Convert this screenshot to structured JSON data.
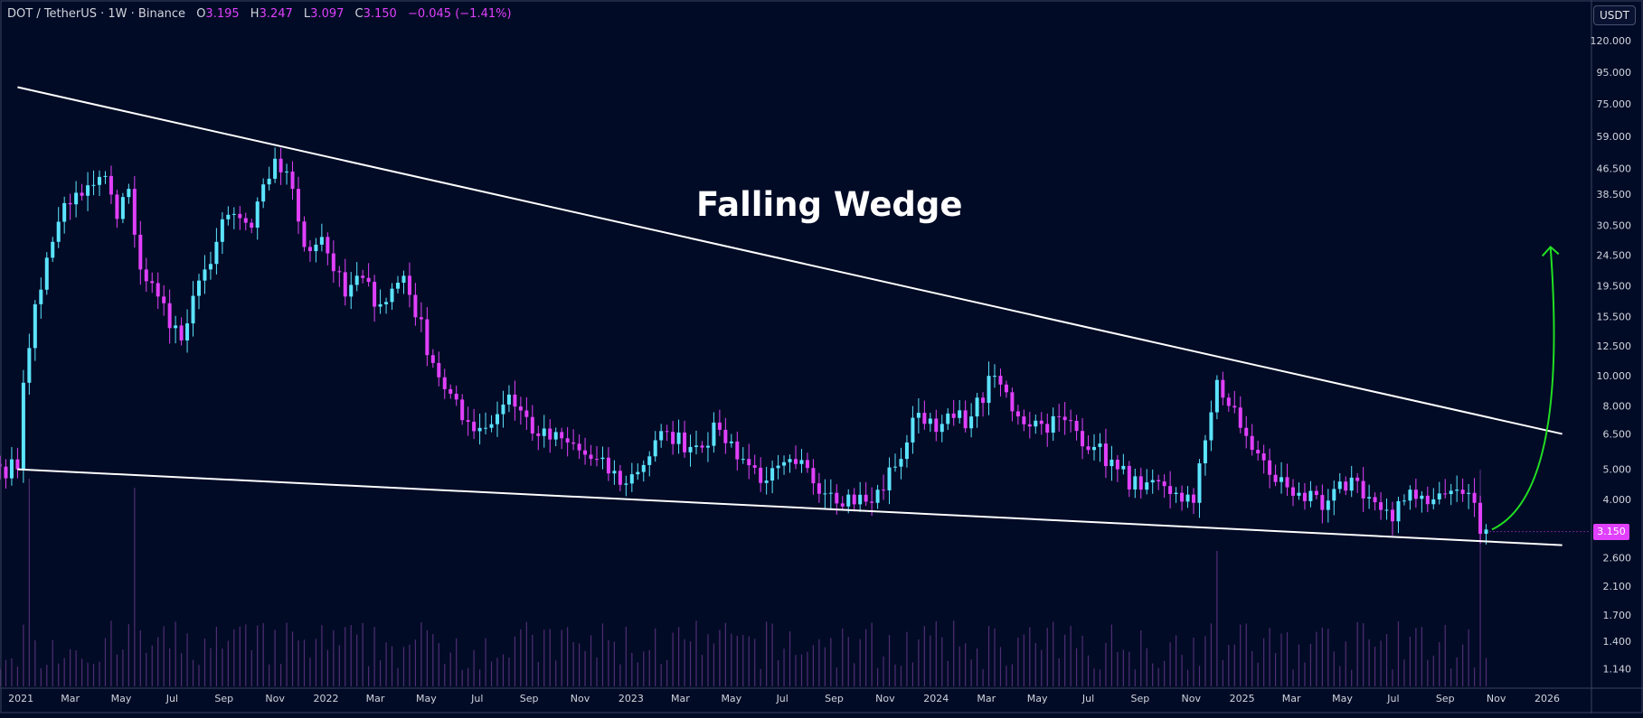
{
  "header": {
    "symbol": "DOT / TetherUS · 1W · Binance",
    "o_label": "O",
    "o_value": "3.195",
    "h_label": "H",
    "h_value": "3.247",
    "l_label": "L",
    "l_value": "3.097",
    "c_label": "C",
    "c_value": "3.150",
    "change": "−0.045 (−1.41%)"
  },
  "unit_badge": "USDT",
  "colors": {
    "background": "#010b26",
    "up": "#5ce4ff",
    "down": "#e040fb",
    "trendline": "#ffffff",
    "arrow": "#22e022",
    "volume": "#6b3a8f"
  },
  "chart_data": {
    "type": "candlestick",
    "title": "Falling Wedge",
    "y_scale": "log",
    "ylim": [
      1.0,
      140.0
    ],
    "y_ticks": [
      120,
      95,
      75,
      59,
      46.5,
      38.5,
      30.5,
      24.5,
      19.5,
      15.5,
      12.5,
      10,
      8,
      6.5,
      5,
      4,
      3.15,
      2.6,
      2.1,
      1.7,
      1.4,
      1.14
    ],
    "y_tick_labels": [
      "120.000",
      "95.000",
      "75.000",
      "59.000",
      "46.500",
      "38.500",
      "30.500",
      "24.500",
      "19.500",
      "15.500",
      "12.500",
      "10.000",
      "8.000",
      "6.500",
      "5.000",
      "4.000",
      "3.150",
      "2.600",
      "2.100",
      "1.700",
      "1.400",
      "1.140"
    ],
    "last_price": "3.150",
    "x_ticks": [
      "2021",
      "Mar",
      "May",
      "Jul",
      "Sep",
      "Nov",
      "2022",
      "Mar",
      "May",
      "Jul",
      "Sep",
      "Nov",
      "2023",
      "Mar",
      "May",
      "Jul",
      "Sep",
      "Nov",
      "2024",
      "Mar",
      "May",
      "Jul",
      "Sep",
      "Nov",
      "2025",
      "Mar",
      "May",
      "Jul",
      "Sep",
      "Nov",
      "2026"
    ],
    "x_tick_dates": [
      "2021-01-01",
      "2021-03-01",
      "2021-05-01",
      "2021-07-01",
      "2021-09-01",
      "2021-11-01",
      "2022-01-01",
      "2022-03-01",
      "2022-05-01",
      "2022-07-01",
      "2022-09-01",
      "2022-11-01",
      "2023-01-01",
      "2023-03-01",
      "2023-05-01",
      "2023-07-01",
      "2023-09-01",
      "2023-11-01",
      "2024-01-01",
      "2024-03-01",
      "2024-05-01",
      "2024-07-01",
      "2024-09-01",
      "2024-11-01",
      "2025-01-01",
      "2025-03-01",
      "2025-05-01",
      "2025-07-01",
      "2025-09-01",
      "2025-11-01",
      "2026-01-01"
    ],
    "anchors": [
      {
        "date": "2020-12-07",
        "value": 5.1
      },
      {
        "date": "2020-12-28",
        "value": 5.0
      },
      {
        "date": "2021-01-04",
        "value": 9.5
      },
      {
        "date": "2021-01-18",
        "value": 17
      },
      {
        "date": "2021-02-08",
        "value": 27
      },
      {
        "date": "2021-02-22",
        "value": 36
      },
      {
        "date": "2021-03-15",
        "value": 38
      },
      {
        "date": "2021-04-12",
        "value": 44
      },
      {
        "date": "2021-04-26",
        "value": 32
      },
      {
        "date": "2021-05-10",
        "value": 40
      },
      {
        "date": "2021-05-24",
        "value": 22
      },
      {
        "date": "2021-06-14",
        "value": 18
      },
      {
        "date": "2021-07-12",
        "value": 13
      },
      {
        "date": "2021-08-09",
        "value": 22
      },
      {
        "date": "2021-09-06",
        "value": 33
      },
      {
        "date": "2021-10-04",
        "value": 30
      },
      {
        "date": "2021-11-01",
        "value": 50
      },
      {
        "date": "2021-11-22",
        "value": 40
      },
      {
        "date": "2021-12-06",
        "value": 26
      },
      {
        "date": "2021-12-27",
        "value": 28
      },
      {
        "date": "2022-01-24",
        "value": 18
      },
      {
        "date": "2022-02-07",
        "value": 21
      },
      {
        "date": "2022-03-07",
        "value": 17
      },
      {
        "date": "2022-04-04",
        "value": 21
      },
      {
        "date": "2022-05-09",
        "value": 11
      },
      {
        "date": "2022-06-13",
        "value": 7.2
      },
      {
        "date": "2022-07-11",
        "value": 6.8
      },
      {
        "date": "2022-08-08",
        "value": 8.7
      },
      {
        "date": "2022-09-12",
        "value": 6.4
      },
      {
        "date": "2022-10-17",
        "value": 6.1
      },
      {
        "date": "2022-11-14",
        "value": 5.4
      },
      {
        "date": "2022-12-26",
        "value": 4.5
      },
      {
        "date": "2023-02-13",
        "value": 6.6
      },
      {
        "date": "2023-03-13",
        "value": 5.9
      },
      {
        "date": "2023-04-17",
        "value": 6.7
      },
      {
        "date": "2023-05-15",
        "value": 5.4
      },
      {
        "date": "2023-06-12",
        "value": 4.6
      },
      {
        "date": "2023-07-17",
        "value": 5.2
      },
      {
        "date": "2023-08-28",
        "value": 4.2
      },
      {
        "date": "2023-10-16",
        "value": 3.9
      },
      {
        "date": "2023-11-13",
        "value": 5.1
      },
      {
        "date": "2023-12-11",
        "value": 7.6
      },
      {
        "date": "2024-01-08",
        "value": 7.0
      },
      {
        "date": "2024-02-12",
        "value": 7.4
      },
      {
        "date": "2024-03-11",
        "value": 10.0
      },
      {
        "date": "2024-04-08",
        "value": 7.4
      },
      {
        "date": "2024-05-06",
        "value": 7.0
      },
      {
        "date": "2024-06-03",
        "value": 7.2
      },
      {
        "date": "2024-07-08",
        "value": 5.9
      },
      {
        "date": "2024-08-05",
        "value": 5.0
      },
      {
        "date": "2024-09-02",
        "value": 4.3
      },
      {
        "date": "2024-10-14",
        "value": 4.2
      },
      {
        "date": "2024-11-04",
        "value": 3.9
      },
      {
        "date": "2024-11-18",
        "value": 6.2
      },
      {
        "date": "2024-12-02",
        "value": 9.7
      },
      {
        "date": "2024-12-30",
        "value": 6.8
      },
      {
        "date": "2025-02-03",
        "value": 4.8
      },
      {
        "date": "2025-03-10",
        "value": 4.2
      },
      {
        "date": "2025-04-07",
        "value": 3.7
      },
      {
        "date": "2025-05-12",
        "value": 4.7
      },
      {
        "date": "2025-06-16",
        "value": 3.7
      },
      {
        "date": "2025-06-30",
        "value": 3.4
      },
      {
        "date": "2025-07-21",
        "value": 4.3
      },
      {
        "date": "2025-08-18",
        "value": 4.0
      },
      {
        "date": "2025-09-15",
        "value": 4.3
      },
      {
        "date": "2025-10-06",
        "value": 3.9
      },
      {
        "date": "2025-10-13",
        "value": 3.1
      },
      {
        "date": "2025-10-20",
        "value": 3.2
      }
    ],
    "trendlines": [
      {
        "name": "upper",
        "from": {
          "date": "2020-12-28",
          "value": 85
        },
        "to": {
          "date": "2026-01-19",
          "value": 6.5
        }
      },
      {
        "name": "lower",
        "from": {
          "date": "2020-12-28",
          "value": 5.0
        },
        "to": {
          "date": "2026-01-19",
          "value": 2.85
        }
      }
    ],
    "arrow": {
      "from": {
        "date": "2025-10-27",
        "value": 3.2
      },
      "to": {
        "date": "2026-01-05",
        "value": 26
      }
    },
    "volume_spikes": [
      {
        "date": "2021-01-11",
        "level": 0.95
      },
      {
        "date": "2021-05-17",
        "level": 0.9
      },
      {
        "date": "2024-12-02",
        "level": 0.55
      },
      {
        "date": "2025-10-13",
        "level": 1.0
      }
    ]
  }
}
